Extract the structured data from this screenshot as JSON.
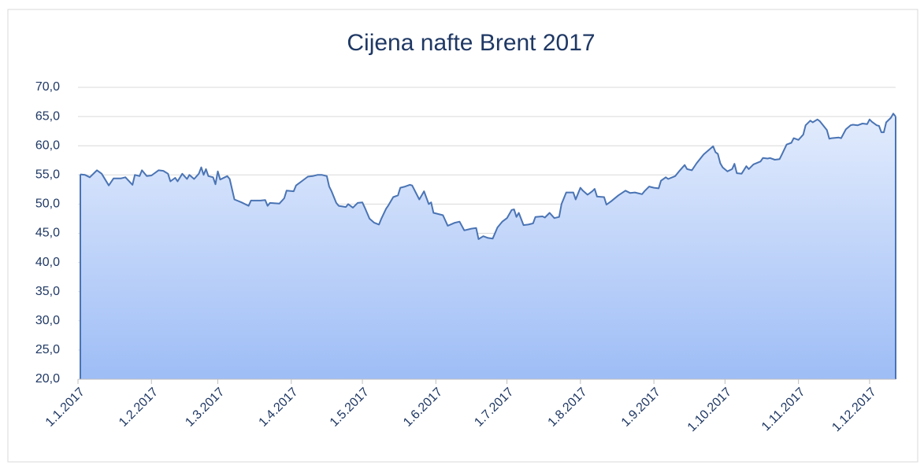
{
  "chart_data": {
    "type": "area",
    "title": "Cijena nafte Brent 2017",
    "color": "#4a74b4",
    "x": [
      "2.1.2017",
      "4.1.2017",
      "6.1.2017",
      "9.1.2017",
      "11.1.2017",
      "14.1.2017",
      "16.1.2017",
      "19.1.2017",
      "21.1.2017",
      "24.1.2017",
      "25.1.2017",
      "27.1.2017",
      "28.1.2017",
      "30.1.2017",
      "1.2.2017",
      "4.2.2017",
      "6.2.2017",
      "8.2.2017",
      "9.2.2017",
      "11.2.2017",
      "12.2.2017",
      "14.2.2017",
      "16.2.2017",
      "17.2.2017",
      "19.2.2017",
      "21.2.2017",
      "22.2.2017",
      "23.2.2017",
      "24.2.2017",
      "25.2.2017",
      "27.2.2017",
      "28.2.2017",
      "1.3.2017",
      "2.3.2017",
      "5.3.2017",
      "6.3.2017",
      "8.3.2017",
      "11.3.2017",
      "14.3.2017",
      "15.3.2017",
      "19.3.2017",
      "21.3.2017",
      "22.3.2017",
      "23.3.2017",
      "27.3.2017",
      "29.3.2017",
      "30.3.2017",
      "2.4.2017",
      "3.4.2017",
      "6.4.2017",
      "8.4.2017",
      "10.4.2017",
      "12.4.2017",
      "14.4.2017",
      "16.4.2017",
      "17.4.2017",
      "18.4.2017",
      "20.4.2017",
      "21.4.2017",
      "24.4.2017",
      "25.4.2017",
      "27.4.2017",
      "29.4.2017",
      "1.5.2017",
      "2.5.2017",
      "4.5.2017",
      "6.5.2017",
      "8.5.2017",
      "9.5.2017",
      "11.5.2017",
      "12.5.2017",
      "14.5.2017",
      "16.5.2017",
      "17.5.2017",
      "19.5.2017",
      "21.5.2017",
      "22.5.2017",
      "25.5.2017",
      "27.5.2017",
      "29.5.2017",
      "30.5.2017",
      "31.5.2017",
      "2.6.2017",
      "4.6.2017",
      "6.6.2017",
      "9.6.2017",
      "11.6.2017",
      "13.6.2017",
      "16.6.2017",
      "18.6.2017",
      "19.6.2017",
      "21.6.2017",
      "23.6.2017",
      "25.6.2017",
      "27.6.2017",
      "29.6.2017",
      "1.7.2017",
      "3.7.2017",
      "4.7.2017",
      "5.7.2017",
      "6.7.2017",
      "8.7.2017",
      "10.7.2017",
      "12.7.2017",
      "13.7.2017",
      "16.7.2017",
      "17.7.2017",
      "19.7.2017",
      "21.7.2017",
      "23.7.2017",
      "24.7.2017",
      "26.7.2017",
      "29.7.2017",
      "30.7.2017",
      "1.8.2017",
      "2.8.2017",
      "4.8.2017",
      "6.8.2017",
      "7.8.2017",
      "8.8.2017",
      "11.8.2017",
      "12.8.2017",
      "14.8.2017",
      "17.8.2017",
      "20.8.2017",
      "22.8.2017",
      "24.8.2017",
      "27.8.2017",
      "28.8.2017",
      "30.8.2017",
      "1.9.2017",
      "3.9.2017",
      "4.9.2017",
      "6.9.2017",
      "7.9.2017",
      "10.9.2017",
      "12.9.2017",
      "14.9.2017",
      "15.9.2017",
      "17.9.2017",
      "19.9.2017",
      "22.9.2017",
      "26.9.2017",
      "27.9.2017",
      "28.9.2017",
      "29.9.2017",
      "30.9.2017",
      "2.10.2017",
      "4.10.2017",
      "5.10.2017",
      "6.10.2017",
      "8.10.2017",
      "10.10.2017",
      "11.10.2017",
      "13.10.2017",
      "16.10.2017",
      "17.10.2017",
      "19.10.2017",
      "20.10.2017",
      "22.10.2017",
      "24.10.2017",
      "25.10.2017",
      "27.10.2017",
      "29.10.2017",
      "30.10.2017",
      "1.11.2017",
      "3.11.2017",
      "4.11.2017",
      "6.11.2017",
      "7.11.2017",
      "9.11.2017",
      "10.11.2017",
      "12.11.2017",
      "13.11.2017",
      "14.11.2017",
      "15.11.2017",
      "18.11.2017",
      "19.11.2017",
      "21.11.2017",
      "23.11.2017",
      "24.11.2017",
      "26.11.2017",
      "28.11.2017",
      "30.11.2017",
      "1.12.2017",
      "2.12.2017",
      "4.12.2017",
      "5.12.2017",
      "6.12.2017",
      "7.12.2017",
      "8.12.2017",
      "10.12.2017",
      "11.12.2017",
      "12.12.2017"
    ],
    "values": [
      55.1,
      55.0,
      54.6,
      55.8,
      55.2,
      53.2,
      54.4,
      54.4,
      54.6,
      53.3,
      55.0,
      54.8,
      55.8,
      54.8,
      54.9,
      55.8,
      55.7,
      55.2,
      53.9,
      54.5,
      53.9,
      55.2,
      54.3,
      55.0,
      54.3,
      55.2,
      56.3,
      55.0,
      56.0,
      54.8,
      54.6,
      53.4,
      55.6,
      54.2,
      54.8,
      54.3,
      50.8,
      50.3,
      49.7,
      50.6,
      50.6,
      50.7,
      49.7,
      50.2,
      50.1,
      51.0,
      52.3,
      52.2,
      53.2,
      54.1,
      54.7,
      54.8,
      55.0,
      55.0,
      54.8,
      53.0,
      52.2,
      50.2,
      49.7,
      49.5,
      50.0,
      49.4,
      50.2,
      50.3,
      49.4,
      47.5,
      46.8,
      46.5,
      47.5,
      49.2,
      49.8,
      51.2,
      51.5,
      52.8,
      53.0,
      53.3,
      53.2,
      50.8,
      52.2,
      50.0,
      50.3,
      48.5,
      48.3,
      48.1,
      46.3,
      46.8,
      47.0,
      45.5,
      45.8,
      45.9,
      44.0,
      44.5,
      44.2,
      44.1,
      46.0,
      47.0,
      47.6,
      49.0,
      49.1,
      47.8,
      48.5,
      46.4,
      46.5,
      46.7,
      47.8,
      47.9,
      47.7,
      48.5,
      47.6,
      47.8,
      50.0,
      52.0,
      52.0,
      50.8,
      52.8,
      52.3,
      51.6,
      52.2,
      52.6,
      51.3,
      51.2,
      49.9,
      50.5,
      51.5,
      52.3,
      51.9,
      52.0,
      51.7,
      52.2,
      53.0,
      52.8,
      52.7,
      54.0,
      54.6,
      54.3,
      54.8,
      55.8,
      56.7,
      56.0,
      55.8,
      57.0,
      58.5,
      59.9,
      58.9,
      58.6,
      57.0,
      56.3,
      55.6,
      56.0,
      56.9,
      55.3,
      55.2,
      56.5,
      56.0,
      56.8,
      57.3,
      57.9,
      57.8,
      57.9,
      57.6,
      57.7,
      58.5,
      60.2,
      60.5,
      61.3,
      61.0,
      61.9,
      63.5,
      64.3,
      64.0,
      64.5,
      64.2,
      63.2,
      62.7,
      61.2,
      61.3,
      61.4,
      61.3,
      62.8,
      63.5,
      63.6,
      63.5,
      63.8,
      63.7,
      64.5,
      64.1,
      63.5,
      63.4,
      62.3,
      62.3,
      64.0,
      64.8,
      65.5,
      65.0
    ],
    "xlim": [
      "1.1.2017",
      "12.12.2017"
    ],
    "xticks": [
      "1.1.2017",
      "1.2.2017",
      "1.3.2017",
      "1.4.2017",
      "1.5.2017",
      "1.6.2017",
      "1.7.2017",
      "1.8.2017",
      "1.9.2017",
      "1.10.2017",
      "1.11.2017",
      "1.12.2017"
    ],
    "ylim": [
      20,
      70
    ],
    "yticks": [
      {
        "value": 20,
        "label": "20,0"
      },
      {
        "value": 25,
        "label": "25,0"
      },
      {
        "value": 30,
        "label": "30,0"
      },
      {
        "value": 35,
        "label": "35,0"
      },
      {
        "value": 40,
        "label": "40,0"
      },
      {
        "value": 45,
        "label": "45,0"
      },
      {
        "value": 50,
        "label": "50,0"
      },
      {
        "value": 55,
        "label": "55,0"
      },
      {
        "value": 60,
        "label": "60,0"
      },
      {
        "value": 65,
        "label": "65,0"
      },
      {
        "value": 70,
        "label": "70,0"
      }
    ],
    "grid": true
  }
}
